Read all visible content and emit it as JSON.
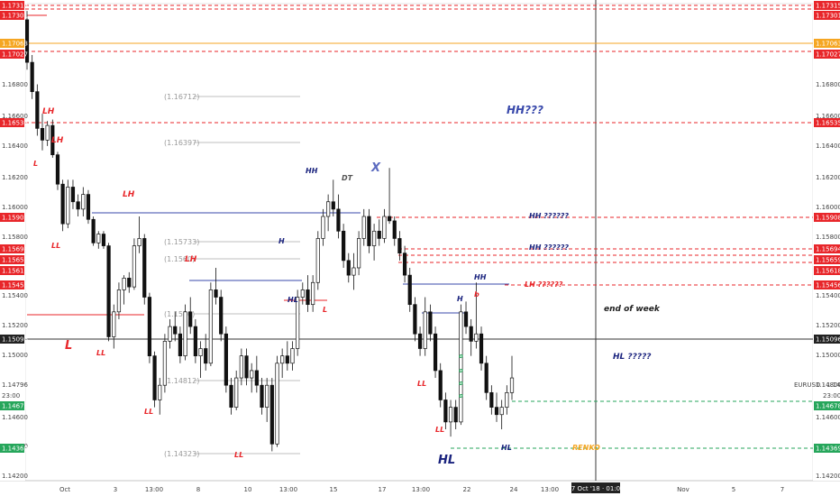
{
  "chart_data": {
    "type": "candlestick",
    "symbol_label": "EURUSD · 1.14796",
    "countdown": "23:00",
    "y_range": [
      1.141,
      1.1735
    ],
    "price_ticks": [
      "1.16800",
      "1.16600",
      "1.16400",
      "1.16200",
      "1.16000",
      "1.15800",
      "1.15400",
      "1.15200",
      "1.15000",
      "1.14800",
      "1.14600",
      "1.14400",
      "1.14200"
    ],
    "price_tags_right": [
      {
        "label": "1.17315",
        "color": "#e8262a"
      },
      {
        "label": "1.17301",
        "color": "#e8262a"
      },
      {
        "label": "1.17063",
        "color": "#f5a623"
      },
      {
        "label": "1.17027",
        "color": "#e8262a"
      },
      {
        "label": "1.16535",
        "color": "#e8262a"
      },
      {
        "label": "1.15908",
        "color": "#e8262a"
      },
      {
        "label": "1.15694",
        "color": "#e8262a"
      },
      {
        "label": "1.15659",
        "color": "#e8262a"
      },
      {
        "label": "1.15618",
        "color": "#e8262a"
      },
      {
        "label": "1.15456",
        "color": "#e8262a"
      },
      {
        "label": "1.15096",
        "color": "#222222"
      },
      {
        "label": "1.14678",
        "color": "#26a65b"
      },
      {
        "label": "1.14369",
        "color": "#26a65b"
      }
    ],
    "price_tags_left": [
      {
        "label": "1.17315",
        "color": "#e8262a"
      },
      {
        "label": "1.17301",
        "color": "#e8262a"
      },
      {
        "label": "1.17063",
        "color": "#f5a623"
      },
      {
        "label": "1.17027",
        "color": "#e8262a"
      },
      {
        "label": "1.16535",
        "color": "#e8262a"
      },
      {
        "label": "1.15908",
        "color": "#e8262a"
      },
      {
        "label": "1.15694",
        "color": "#e8262a"
      },
      {
        "label": "1.15659",
        "color": "#e8262a"
      },
      {
        "label": "1.15618",
        "color": "#e8262a"
      },
      {
        "label": "1.15456",
        "color": "#e8262a"
      },
      {
        "label": "1.15096",
        "color": "#222222"
      },
      {
        "label": "1.14678",
        "color": "#26a65b"
      },
      {
        "label": "1.14369",
        "color": "#26a65b"
      }
    ],
    "left_ticks": [
      "1.16800",
      "1.16600",
      "1.16400",
      "1.16200",
      "1.16000",
      "1.15800",
      "1.15400",
      "1.15200",
      "1.15000",
      "1.14796",
      "1.14600",
      "1.14400",
      "1.14200"
    ],
    "left_countdown": "23:00",
    "x_ticks": [
      "Oct",
      "3",
      "13:00",
      "8",
      "10",
      "13:00",
      "15",
      "17",
      "13:00",
      "22",
      "24",
      "13:00",
      "Nov",
      "5",
      "7"
    ],
    "crosshair_time": "27 Oct '18 · 01:00",
    "gray_levels": [
      "(1.16712)",
      "(1.16397)",
      "(1.15733)",
      "(1.1560)",
      "(1.1520)",
      "(1.14812)",
      "(1.14323)"
    ],
    "annotations": [
      {
        "text": "LH",
        "color": "#e8262a"
      },
      {
        "text": "LH",
        "color": "#e8262a"
      },
      {
        "text": "L",
        "color": "#e8262a"
      },
      {
        "text": "LH",
        "color": "#e8262a"
      },
      {
        "text": "LL",
        "color": "#e8262a"
      },
      {
        "text": "L",
        "color": "#e8262a"
      },
      {
        "text": "LL",
        "color": "#e8262a"
      },
      {
        "text": "LL",
        "color": "#e8262a"
      },
      {
        "text": "LH",
        "color": "#e8262a"
      },
      {
        "text": "LL",
        "color": "#e8262a"
      },
      {
        "text": "HH",
        "color": "#1a237e"
      },
      {
        "text": "DT",
        "color": "#555555"
      },
      {
        "text": "X",
        "color": "#5c6bc0"
      },
      {
        "text": "H",
        "color": "#1a237e"
      },
      {
        "text": "HL",
        "color": "#1a237e"
      },
      {
        "text": "L",
        "color": "#e8262a"
      },
      {
        "text": "HH???",
        "color": "#3949ab"
      },
      {
        "text": "HH ??????",
        "color": "#1a237e"
      },
      {
        "text": "HH ??????",
        "color": "#1a237e"
      },
      {
        "text": "LH ??????",
        "color": "#e8262a"
      },
      {
        "text": "HH",
        "color": "#1a237e"
      },
      {
        "text": "H",
        "color": "#1a237e"
      },
      {
        "text": "b",
        "color": "#e8262a"
      },
      {
        "text": "LL",
        "color": "#e8262a"
      },
      {
        "text": "LL",
        "color": "#e8262a"
      },
      {
        "text": "HL",
        "color": "#1a237e"
      },
      {
        "text": "HL",
        "color": "#1a237e"
      },
      {
        "text": "end of week",
        "color": "#222222"
      },
      {
        "text": "HL ?????",
        "color": "#1a237e"
      },
      {
        "text": "RENKO",
        "color": "#f5a623"
      }
    ],
    "candles": [
      [
        1.1724,
        1.173,
        1.169,
        1.1695
      ],
      [
        1.1695,
        1.17,
        1.167,
        1.1675
      ],
      [
        1.1675,
        1.168,
        1.1645,
        1.165
      ],
      [
        1.165,
        1.166,
        1.1635,
        1.1642
      ],
      [
        1.1642,
        1.1655,
        1.1638,
        1.1652
      ],
      [
        1.1652,
        1.1656,
        1.163,
        1.1632
      ],
      [
        1.1632,
        1.1634,
        1.1608,
        1.1612
      ],
      [
        1.1612,
        1.1615,
        1.158,
        1.1585
      ],
      [
        1.1585,
        1.1615,
        1.1582,
        1.161
      ],
      [
        1.161,
        1.1615,
        1.1595,
        1.16
      ],
      [
        1.16,
        1.1605,
        1.159,
        1.1595
      ],
      [
        1.1595,
        1.161,
        1.159,
        1.1605
      ],
      [
        1.1605,
        1.1608,
        1.1585,
        1.1588
      ],
      [
        1.1588,
        1.159,
        1.157,
        1.1572
      ],
      [
        1.1572,
        1.158,
        1.1568,
        1.1578
      ],
      [
        1.1578,
        1.158,
        1.1568,
        1.157
      ],
      [
        1.157,
        1.1572,
        1.1505,
        1.1508
      ],
      [
        1.1508,
        1.153,
        1.15,
        1.1525
      ],
      [
        1.1525,
        1.1545,
        1.152,
        1.154
      ],
      [
        1.154,
        1.155,
        1.153,
        1.1548
      ],
      [
        1.1548,
        1.1552,
        1.1538,
        1.1542
      ],
      [
        1.1542,
        1.1575,
        1.154,
        1.157
      ],
      [
        1.157,
        1.159,
        1.1565,
        1.1575
      ],
      [
        1.1575,
        1.1578,
        1.153,
        1.1535
      ],
      [
        1.1535,
        1.1538,
        1.149,
        1.1495
      ],
      [
        1.1495,
        1.1498,
        1.146,
        1.1465
      ],
      [
        1.1465,
        1.148,
        1.1455,
        1.1475
      ],
      [
        1.1475,
        1.151,
        1.147,
        1.1505
      ],
      [
        1.1505,
        1.152,
        1.15,
        1.1515
      ],
      [
        1.1515,
        1.1525,
        1.1505,
        1.151
      ],
      [
        1.151,
        1.1515,
        1.149,
        1.1495
      ],
      [
        1.1495,
        1.153,
        1.1492,
        1.1525
      ],
      [
        1.1525,
        1.1535,
        1.151,
        1.1515
      ],
      [
        1.1515,
        1.152,
        1.149,
        1.1495
      ],
      [
        1.1495,
        1.1505,
        1.148,
        1.15
      ],
      [
        1.15,
        1.151,
        1.1485,
        1.149
      ],
      [
        1.149,
        1.1545,
        1.1488,
        1.154
      ],
      [
        1.154,
        1.1555,
        1.153,
        1.1535
      ],
      [
        1.1535,
        1.154,
        1.1505,
        1.151
      ],
      [
        1.151,
        1.1515,
        1.147,
        1.1475
      ],
      [
        1.1475,
        1.148,
        1.1455,
        1.146
      ],
      [
        1.146,
        1.1485,
        1.1458,
        1.148
      ],
      [
        1.148,
        1.15,
        1.1475,
        1.1495
      ],
      [
        1.1495,
        1.15,
        1.1475,
        1.148
      ],
      [
        1.148,
        1.149,
        1.147,
        1.1485
      ],
      [
        1.1485,
        1.1495,
        1.147,
        1.1475
      ],
      [
        1.1475,
        1.148,
        1.1455,
        1.146
      ],
      [
        1.146,
        1.148,
        1.145,
        1.1475
      ],
      [
        1.1475,
        1.148,
        1.143,
        1.1435
      ],
      [
        1.1435,
        1.1495,
        1.1433,
        1.149
      ],
      [
        1.149,
        1.15,
        1.148,
        1.1495
      ],
      [
        1.1495,
        1.1505,
        1.1485,
        1.149
      ],
      [
        1.149,
        1.1505,
        1.1485,
        1.15
      ],
      [
        1.15,
        1.154,
        1.1495,
        1.1535
      ],
      [
        1.1535,
        1.1545,
        1.153,
        1.154
      ],
      [
        1.154,
        1.155,
        1.1525,
        1.153
      ],
      [
        1.153,
        1.155,
        1.1525,
        1.1545
      ],
      [
        1.1545,
        1.158,
        1.154,
        1.1575
      ],
      [
        1.1575,
        1.1595,
        1.157,
        1.159
      ],
      [
        1.159,
        1.1605,
        1.158,
        1.16
      ],
      [
        1.16,
        1.1615,
        1.159,
        1.1595
      ],
      [
        1.1595,
        1.1605,
        1.1575,
        1.158
      ],
      [
        1.158,
        1.1585,
        1.1555,
        1.156
      ],
      [
        1.156,
        1.1565,
        1.1545,
        1.155
      ],
      [
        1.155,
        1.1565,
        1.154,
        1.1555
      ],
      [
        1.1555,
        1.158,
        1.155,
        1.1575
      ],
      [
        1.1575,
        1.1595,
        1.157,
        1.159
      ],
      [
        1.159,
        1.1595,
        1.1565,
        1.157
      ],
      [
        1.157,
        1.1585,
        1.156,
        1.158
      ],
      [
        1.158,
        1.1588,
        1.157,
        1.1575
      ],
      [
        1.1575,
        1.1595,
        1.1572,
        1.159
      ],
      [
        1.159,
        1.1623,
        1.1585,
        1.1587
      ],
      [
        1.1587,
        1.159,
        1.157,
        1.1575
      ],
      [
        1.1575,
        1.158,
        1.156,
        1.1565
      ],
      [
        1.1565,
        1.157,
        1.1545,
        1.155
      ],
      [
        1.155,
        1.1555,
        1.1525,
        1.153
      ],
      [
        1.153,
        1.1535,
        1.1505,
        1.151
      ],
      [
        1.151,
        1.1515,
        1.1495,
        1.15
      ],
      [
        1.15,
        1.1535,
        1.1495,
        1.1525
      ],
      [
        1.1525,
        1.153,
        1.1505,
        1.151
      ],
      [
        1.151,
        1.1515,
        1.148,
        1.1485
      ],
      [
        1.1485,
        1.149,
        1.146,
        1.1465
      ],
      [
        1.1465,
        1.147,
        1.1445,
        1.145
      ],
      [
        1.145,
        1.1465,
        1.144,
        1.146
      ],
      [
        1.146,
        1.1465,
        1.1445,
        1.145
      ],
      [
        1.145,
        1.153,
        1.1448,
        1.1525
      ],
      [
        1.1525,
        1.1532,
        1.151,
        1.1515
      ],
      [
        1.1515,
        1.152,
        1.1495,
        1.1505
      ],
      [
        1.1505,
        1.1545,
        1.15,
        1.151
      ],
      [
        1.151,
        1.1515,
        1.1485,
        1.149
      ],
      [
        1.149,
        1.1495,
        1.1465,
        1.147
      ],
      [
        1.147,
        1.1475,
        1.1455,
        1.146
      ],
      [
        1.146,
        1.147,
        1.145,
        1.1455
      ],
      [
        1.1455,
        1.1465,
        1.1445,
        1.146
      ],
      [
        1.146,
        1.1475,
        1.1455,
        1.147
      ],
      [
        1.147,
        1.1495,
        1.1465,
        1.148
      ]
    ]
  }
}
